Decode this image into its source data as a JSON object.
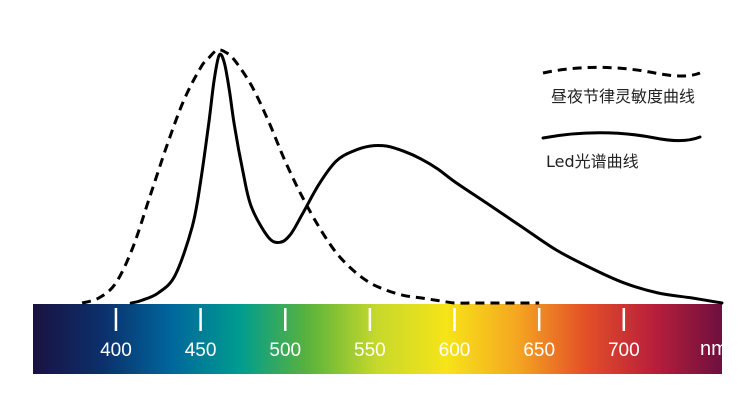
{
  "chart_data": {
    "type": "line",
    "xlabel": "nm",
    "x_unit": "nm",
    "xlim": [
      351,
      758
    ],
    "ylim": [
      0,
      1
    ],
    "x_ticks": [
      400,
      450,
      500,
      550,
      600,
      650,
      700
    ],
    "grid": false,
    "legend_position": "top-right",
    "spectrum_bar": true,
    "colors": {
      "spectrum": [
        "#1a1240",
        "#0c2f6b",
        "#00669c",
        "#009c8f",
        "#5bb33b",
        "#c7d92b",
        "#f6e418",
        "#f5a821",
        "#e45127",
        "#b91f3b",
        "#6e0f3e"
      ]
    },
    "series": [
      {
        "name": "昼夜节律灵敏度曲线",
        "style": "dashed",
        "x": [
          380,
          390,
          400,
          410,
          420,
          430,
          440,
          450,
          455,
          460,
          465,
          470,
          480,
          490,
          500,
          510,
          520,
          530,
          540,
          550,
          560,
          570,
          580,
          590,
          600,
          610,
          620,
          630,
          640,
          650
        ],
        "y": [
          0.0,
          0.02,
          0.08,
          0.22,
          0.42,
          0.62,
          0.8,
          0.93,
          0.97,
          1.0,
          0.99,
          0.96,
          0.86,
          0.72,
          0.56,
          0.42,
          0.3,
          0.2,
          0.13,
          0.08,
          0.05,
          0.03,
          0.02,
          0.01,
          0.0,
          0.0,
          0.0,
          0.0,
          0.0,
          0.0
        ]
      },
      {
        "name": "Led光谱曲线",
        "style": "solid",
        "x": [
          409,
          415,
          425,
          435,
          445,
          450,
          455,
          458,
          461,
          464,
          467,
          470,
          475,
          480,
          490,
          497,
          503,
          510,
          520,
          530,
          540,
          550,
          560,
          570,
          580,
          590,
          600,
          620,
          640,
          660,
          680,
          700,
          720,
          740,
          758
        ],
        "y": [
          0.0,
          0.01,
          0.04,
          0.11,
          0.3,
          0.48,
          0.72,
          0.88,
          0.98,
          0.95,
          0.84,
          0.7,
          0.52,
          0.38,
          0.26,
          0.24,
          0.27,
          0.35,
          0.47,
          0.56,
          0.6,
          0.62,
          0.62,
          0.6,
          0.57,
          0.53,
          0.48,
          0.39,
          0.3,
          0.21,
          0.14,
          0.08,
          0.04,
          0.02,
          0.0
        ]
      }
    ]
  }
}
